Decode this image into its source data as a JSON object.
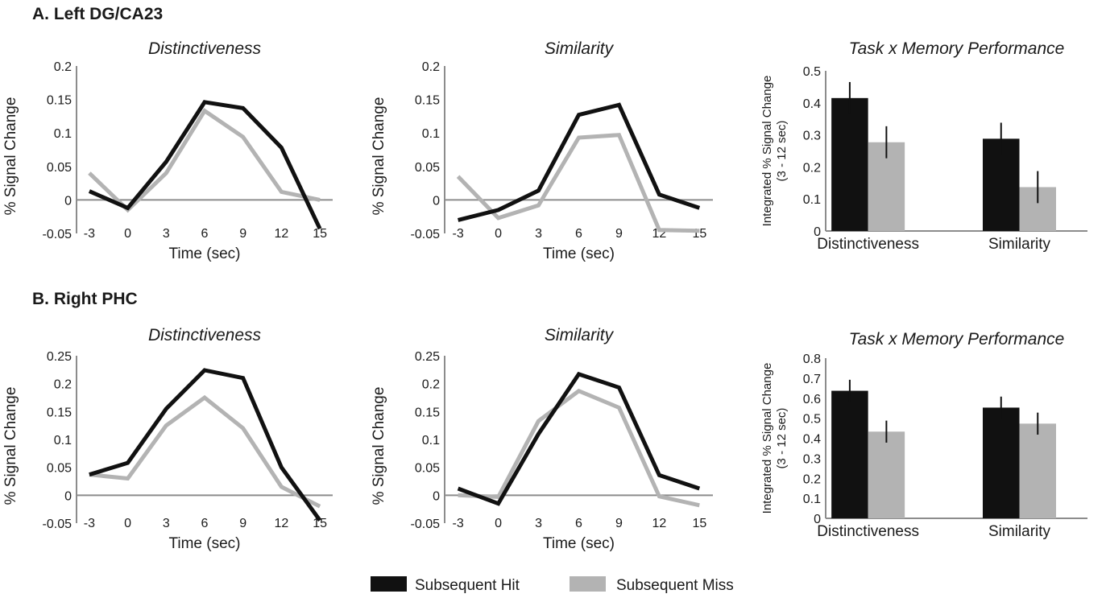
{
  "colors": {
    "hit": "#111111",
    "miss": "#b3b3b3",
    "axis": "#8c8c8c"
  },
  "legend": {
    "hit_label": "Subsequent Hit",
    "miss_label": "Subsequent Miss"
  },
  "panels": [
    {
      "title": "A. Left DG/CA23"
    },
    {
      "title": "B. Right PHC"
    }
  ],
  "chart_data": [
    {
      "id": "A-distinctiveness",
      "panel": "A",
      "type": "line",
      "title": "Distinctiveness",
      "xlabel": "Time (sec)",
      "ylabel": "% Signal Change",
      "x": [
        -3,
        0,
        3,
        6,
        9,
        12,
        15
      ],
      "xlim": [
        -4,
        16
      ],
      "ylim": [
        -0.05,
        0.2
      ],
      "yticks": [
        -0.05,
        0,
        0.05,
        0.1,
        0.15,
        0.2
      ],
      "ytick_labels": [
        "-0.05",
        "0",
        "0.05",
        "0.1",
        "0.15",
        "0.2"
      ],
      "series": [
        {
          "name": "Subsequent Hit",
          "color": "#111111",
          "values": [
            0.013,
            -0.012,
            0.057,
            0.146,
            0.137,
            0.078,
            -0.043
          ]
        },
        {
          "name": "Subsequent Miss",
          "color": "#b3b3b3",
          "values": [
            0.04,
            -0.015,
            0.04,
            0.133,
            0.094,
            0.012,
            0.0
          ]
        }
      ]
    },
    {
      "id": "A-similarity",
      "panel": "A",
      "type": "line",
      "title": "Similarity",
      "xlabel": "Time (sec)",
      "ylabel": "% Signal Change",
      "x": [
        -3,
        0,
        3,
        6,
        9,
        12,
        15
      ],
      "xlim": [
        -4,
        16
      ],
      "ylim": [
        -0.05,
        0.2
      ],
      "yticks": [
        -0.05,
        0,
        0.05,
        0.1,
        0.15,
        0.2
      ],
      "ytick_labels": [
        "-0.05",
        "0",
        "0.05",
        "0.1",
        "0.15",
        "0.2"
      ],
      "series": [
        {
          "name": "Subsequent Hit",
          "color": "#111111",
          "values": [
            -0.03,
            -0.015,
            0.014,
            0.127,
            0.142,
            0.008,
            -0.012
          ]
        },
        {
          "name": "Subsequent Miss",
          "color": "#b3b3b3",
          "values": [
            0.035,
            -0.027,
            -0.008,
            0.093,
            0.097,
            -0.045,
            -0.046
          ]
        }
      ]
    },
    {
      "id": "A-bars",
      "panel": "A",
      "type": "bar",
      "title": "Task x Memory Performance",
      "ylabel": "Integrated % Signal Change",
      "ylabel2": "(3 - 12 sec)",
      "categories": [
        "Distinctiveness",
        "Similarity"
      ],
      "ylim": [
        0,
        0.5
      ],
      "yticks": [
        0,
        0.1,
        0.2,
        0.3,
        0.4,
        0.5
      ],
      "ytick_labels": [
        "0",
        "0.1",
        "0.2",
        "0.3",
        "0.4",
        "0.5"
      ],
      "series": [
        {
          "name": "Subsequent Hit",
          "color": "#111111",
          "values": [
            0.415,
            0.288
          ],
          "errors": [
            0.05,
            0.05
          ]
        },
        {
          "name": "Subsequent Miss",
          "color": "#b3b3b3",
          "values": [
            0.277,
            0.137
          ],
          "errors": [
            0.05,
            0.05
          ]
        }
      ]
    },
    {
      "id": "B-distinctiveness",
      "panel": "B",
      "type": "line",
      "title": "Distinctiveness",
      "xlabel": "Time (sec)",
      "ylabel": "% Signal Change",
      "x": [
        -3,
        0,
        3,
        6,
        9,
        12,
        15
      ],
      "xlim": [
        -4,
        16
      ],
      "ylim": [
        -0.05,
        0.25
      ],
      "yticks": [
        -0.05,
        0,
        0.05,
        0.1,
        0.15,
        0.2,
        0.25
      ],
      "ytick_labels": [
        "-0.05",
        "0",
        "0.05",
        "0.1",
        "0.15",
        "0.2",
        "0.25"
      ],
      "series": [
        {
          "name": "Subsequent Hit",
          "color": "#111111",
          "values": [
            0.037,
            0.058,
            0.155,
            0.224,
            0.21,
            0.05,
            -0.045
          ]
        },
        {
          "name": "Subsequent Miss",
          "color": "#b3b3b3",
          "values": [
            0.037,
            0.03,
            0.125,
            0.175,
            0.12,
            0.015,
            -0.02
          ]
        }
      ]
    },
    {
      "id": "B-similarity",
      "panel": "B",
      "type": "line",
      "title": "Similarity",
      "xlabel": "Time (sec)",
      "ylabel": "% Signal Change",
      "x": [
        -3,
        0,
        3,
        6,
        9,
        12,
        15
      ],
      "xlim": [
        -4,
        16
      ],
      "ylim": [
        -0.05,
        0.25
      ],
      "yticks": [
        -0.05,
        0,
        0.05,
        0.1,
        0.15,
        0.2,
        0.25
      ],
      "ytick_labels": [
        "-0.05",
        "0",
        "0.05",
        "0.1",
        "0.15",
        "0.2",
        "0.25"
      ],
      "series": [
        {
          "name": "Subsequent Hit",
          "color": "#111111",
          "values": [
            0.012,
            -0.015,
            0.11,
            0.217,
            0.193,
            0.036,
            0.012
          ]
        },
        {
          "name": "Subsequent Miss",
          "color": "#b3b3b3",
          "values": [
            0.0,
            -0.003,
            0.133,
            0.187,
            0.157,
            -0.002,
            -0.018
          ]
        }
      ]
    },
    {
      "id": "B-bars",
      "panel": "B",
      "type": "bar",
      "title": "Task x Memory Performance",
      "ylabel": "Integrated % Signal Change",
      "ylabel2": "(3 - 12 sec)",
      "categories": [
        "Distinctiveness",
        "Similarity"
      ],
      "ylim": [
        0,
        0.8
      ],
      "yticks": [
        0,
        0.1,
        0.2,
        0.3,
        0.4,
        0.5,
        0.6,
        0.7,
        0.8
      ],
      "ytick_labels": [
        "0",
        "0.1",
        "0.2",
        "0.3",
        "0.4",
        "0.5",
        "0.6",
        "0.7",
        "0.8"
      ],
      "series": [
        {
          "name": "Subsequent Hit",
          "color": "#111111",
          "values": [
            0.637,
            0.553
          ],
          "errors": [
            0.055,
            0.055
          ]
        },
        {
          "name": "Subsequent Miss",
          "color": "#b3b3b3",
          "values": [
            0.433,
            0.473
          ],
          "errors": [
            0.055,
            0.055
          ]
        }
      ]
    }
  ]
}
